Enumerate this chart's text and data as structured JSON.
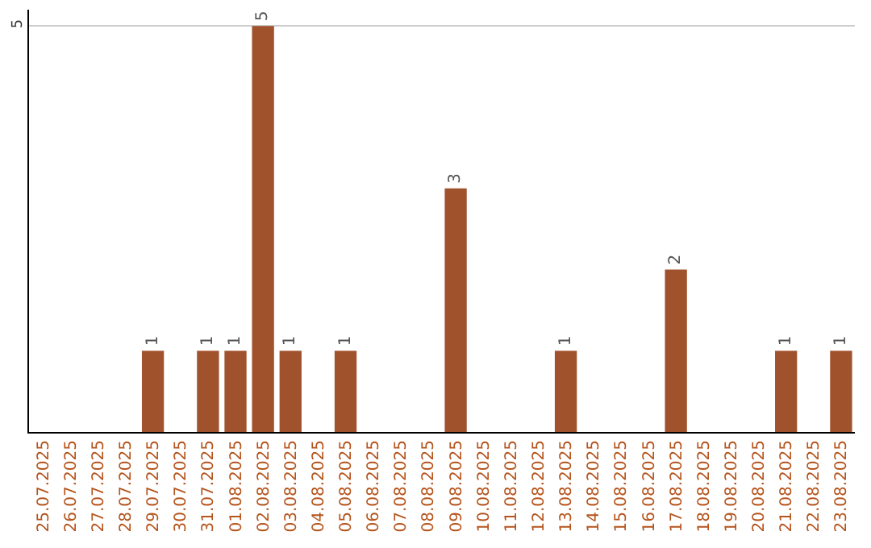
{
  "chart_data": {
    "type": "bar",
    "categories": [
      "25.07.2025",
      "26.07.2025",
      "27.07.2025",
      "28.07.2025",
      "29.07.2025",
      "30.07.2025",
      "31.07.2025",
      "01.08.2025",
      "02.08.2025",
      "03.08.2025",
      "04.08.2025",
      "05.08.2025",
      "06.08.2025",
      "07.08.2025",
      "08.08.2025",
      "09.08.2025",
      "10.08.2025",
      "11.08.2025",
      "12.08.2025",
      "13.08.2025",
      "14.08.2025",
      "15.08.2025",
      "16.08.2025",
      "17.08.2025",
      "18.08.2025",
      "19.08.2025",
      "20.08.2025",
      "21.08.2025",
      "22.08.2025",
      "23.08.2025"
    ],
    "values": [
      0,
      0,
      0,
      0,
      1,
      0,
      1,
      1,
      5,
      1,
      0,
      1,
      0,
      0,
      0,
      3,
      0,
      0,
      0,
      1,
      0,
      0,
      0,
      2,
      0,
      0,
      0,
      1,
      0,
      1
    ],
    "value_labels": [
      null,
      null,
      null,
      null,
      "1",
      null,
      "1",
      "1",
      "5",
      "1",
      null,
      "1",
      null,
      null,
      null,
      "3",
      null,
      null,
      null,
      "1",
      null,
      null,
      null,
      "2",
      null,
      null,
      null,
      "1",
      null,
      "1"
    ],
    "color": "#a0522d",
    "ylim": [
      0,
      5.2
    ],
    "yticks": [
      5
    ],
    "grid": "y"
  }
}
